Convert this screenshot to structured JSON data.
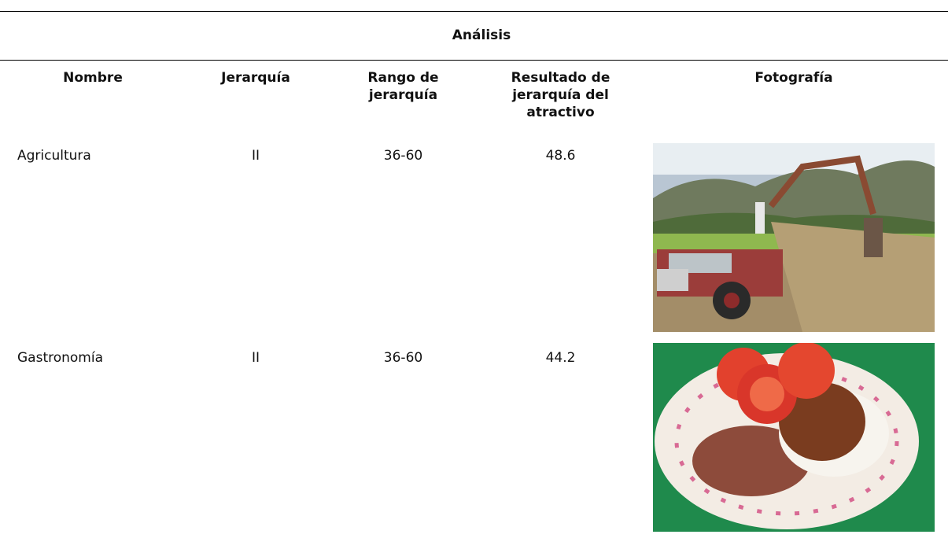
{
  "header": {
    "title": "Análisis",
    "columns": [
      "Nombre",
      "Jerarquía",
      "Rango de jerarquía",
      "Resultado de jerarquía del atractivo",
      "Fotografía"
    ]
  },
  "table": {
    "rows": [
      [
        "Agricultura",
        "II",
        "36-60",
        "48.6"
      ],
      [
        "Gastronomía",
        "II",
        "36-60",
        "44.2"
      ]
    ]
  }
}
